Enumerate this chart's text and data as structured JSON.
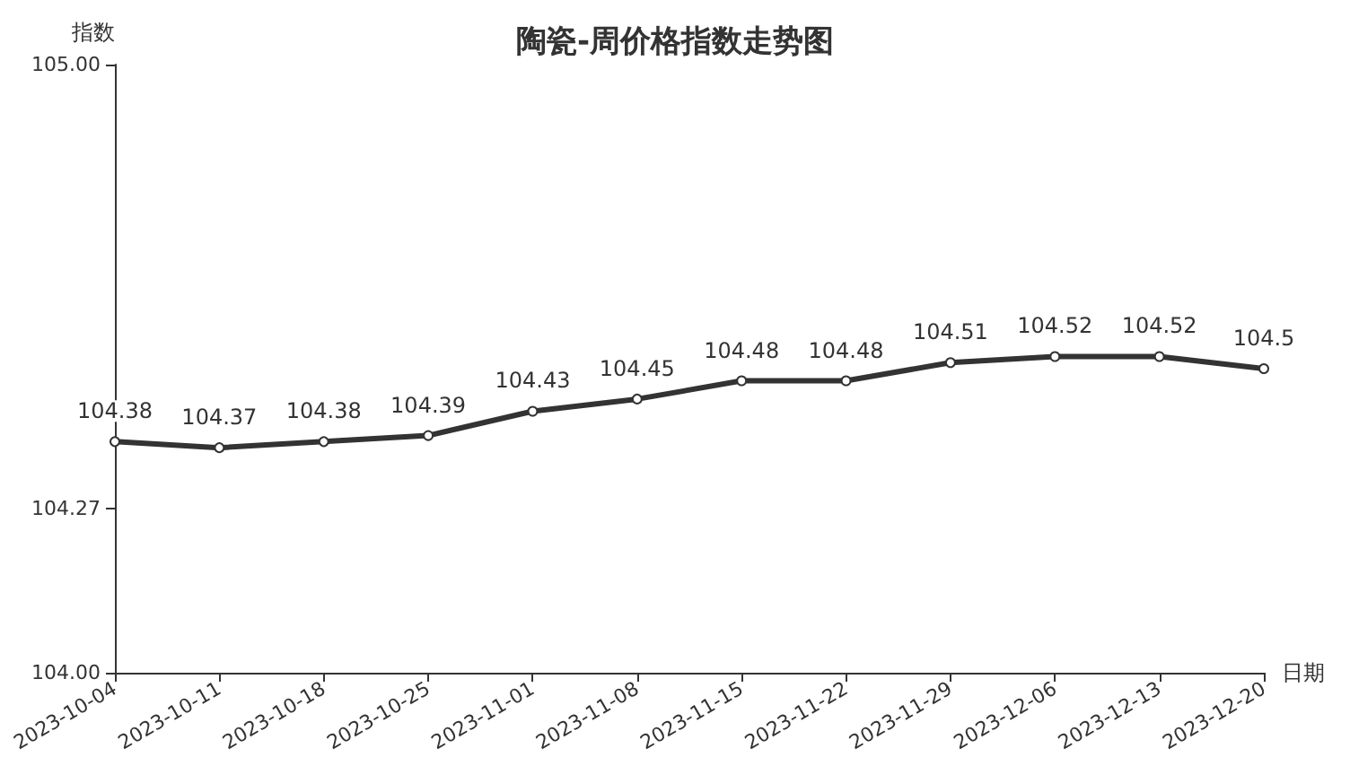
{
  "chart_data": {
    "type": "line",
    "title": "陶瓷-周价格指数走势图",
    "xlabel": "日期",
    "ylabel": "指数",
    "categories": [
      "2023-10-04",
      "2023-10-11",
      "2023-10-18",
      "2023-10-25",
      "2023-11-01",
      "2023-11-08",
      "2023-11-15",
      "2023-11-22",
      "2023-11-29",
      "2023-12-06",
      "2023-12-13",
      "2023-12-20"
    ],
    "series": [
      {
        "color": "#333333",
        "values": [
          104.38,
          104.37,
          104.38,
          104.39,
          104.43,
          104.45,
          104.48,
          104.48,
          104.51,
          104.52,
          104.52,
          104.5
        ]
      }
    ],
    "ylim": [
      104.0,
      105.0
    ],
    "yticks": [
      {
        "value": 104.0,
        "label": "104.00"
      },
      {
        "value": 104.27,
        "label": "104.27"
      },
      {
        "value": 105.0,
        "label": "105.00"
      }
    ],
    "data_labels": true,
    "marker": "circle",
    "line_style": "solid",
    "grid": false
  }
}
